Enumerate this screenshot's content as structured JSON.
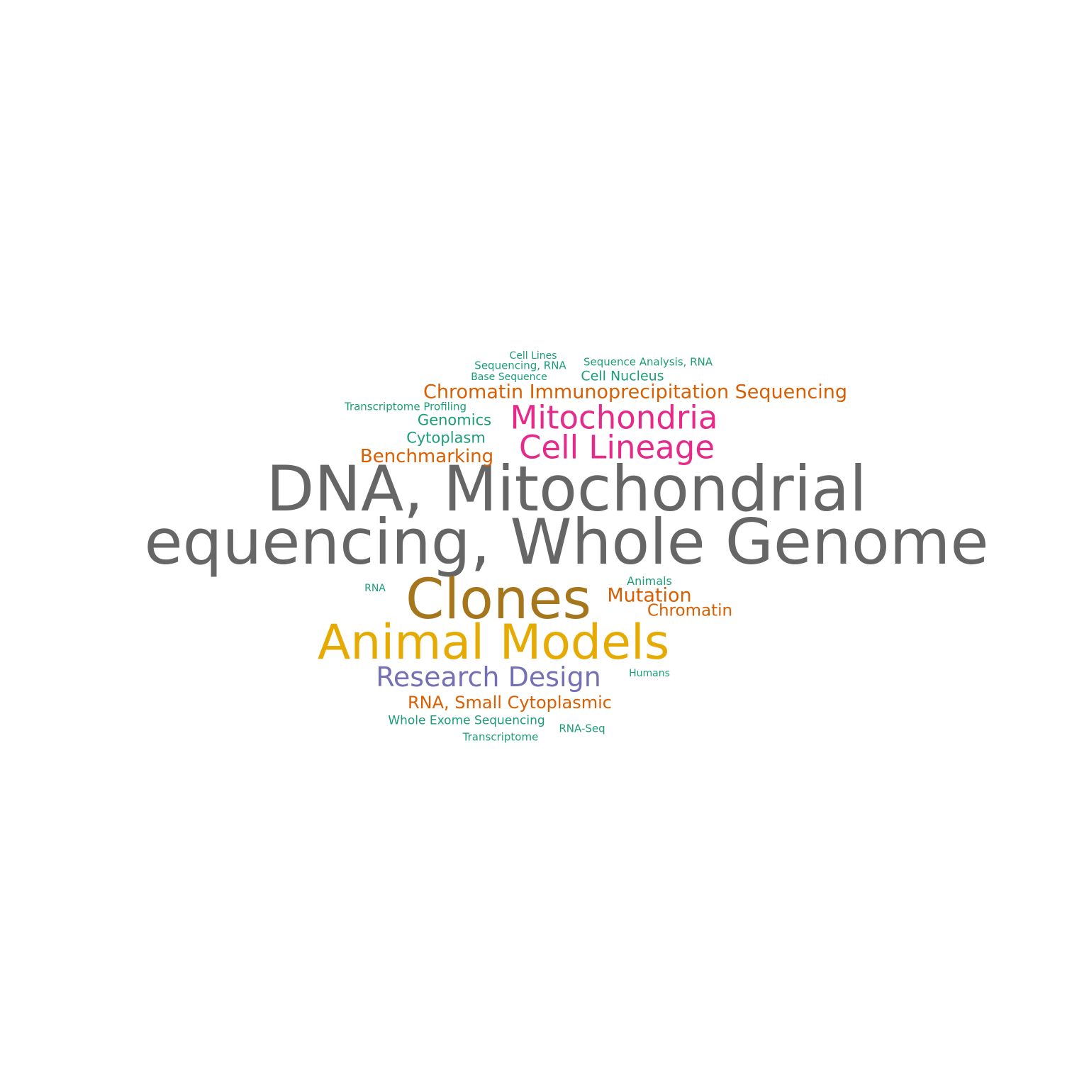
{
  "words": [
    {
      "text": "DNA, Mitochondrial",
      "color": "#666666"
    },
    {
      "text": "equencing, Whole Genome",
      "color": "#666666"
    },
    {
      "text": "Clones",
      "color": "#a6761d"
    },
    {
      "text": "Animal Models",
      "color": "#e6ab02"
    },
    {
      "text": "Mitochondria",
      "color": "#e7298a"
    },
    {
      "text": "Cell Lineage",
      "color": "#e7298a"
    },
    {
      "text": "Research Design",
      "color": "#7570b3"
    },
    {
      "text": "Chromatin Immunoprecipitation Sequencing",
      "color": "#d95f02"
    },
    {
      "text": "Benchmarking",
      "color": "#d95f02"
    },
    {
      "text": "Mutation",
      "color": "#d95f02"
    },
    {
      "text": "Chromatin",
      "color": "#d95f02"
    },
    {
      "text": "RNA, Small Cytoplasmic",
      "color": "#d95f02"
    },
    {
      "text": "Genomics",
      "color": "#1b9e77"
    },
    {
      "text": "Cytoplasm",
      "color": "#1b9e77"
    },
    {
      "text": "Cell Nucleus",
      "color": "#1b9e77"
    },
    {
      "text": "Whole Exome Sequencing",
      "color": "#1b9e77"
    },
    {
      "text": "Animals",
      "color": "#1b9e77"
    },
    {
      "text": "Sequence Analysis, RNA",
      "color": "#1b9e77"
    },
    {
      "text": "Cell Lines",
      "color": "#1b9e77"
    },
    {
      "text": "Sequencing, RNA",
      "color": "#1b9e77"
    },
    {
      "text": "Base Sequence",
      "color": "#1b9e77"
    },
    {
      "text": "Transcriptome Profiling",
      "color": "#1b9e77"
    },
    {
      "text": "RNA",
      "color": "#1b9e77"
    },
    {
      "text": "Humans",
      "color": "#1b9e77"
    },
    {
      "text": "RNA-Seq",
      "color": "#1b9e77"
    },
    {
      "text": "Transcriptome",
      "color": "#1b9e77"
    }
  ]
}
